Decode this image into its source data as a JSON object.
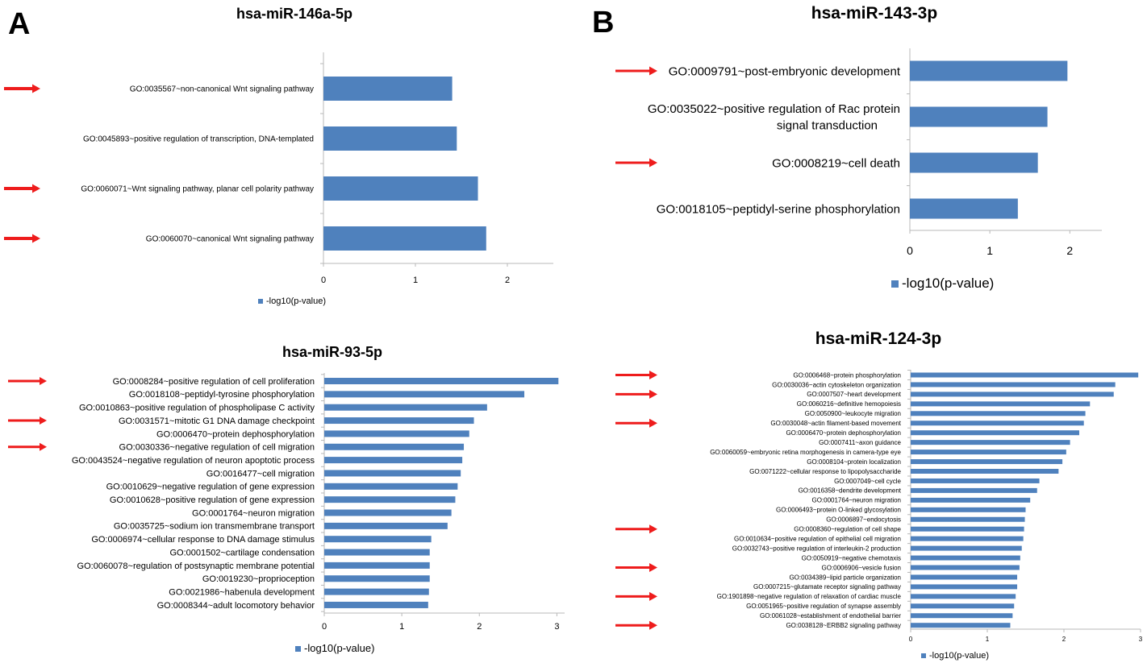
{
  "panel_labels": [
    "A",
    "B"
  ],
  "colors": {
    "bar": "#4f81bd",
    "arrow": "#ee1c1c",
    "axis": "#b8b8b8"
  },
  "chart_data": [
    {
      "type": "bar",
      "orientation": "horizontal",
      "title": "hsa-miR-146a-5p",
      "legend": "-log10(p-value)",
      "xlim": [
        0,
        2.5
      ],
      "xticks": [
        0,
        1,
        2
      ],
      "categories": [
        "GO:0035567~non-canonical Wnt signaling pathway",
        "GO:0045893~positive regulation of transcription, DNA-templated",
        "GO:0060071~Wnt signaling pathway, planar cell polarity pathway",
        "GO:0060070~canonical Wnt signaling pathway"
      ],
      "values": [
        1.4,
        1.45,
        1.68,
        1.77
      ],
      "highlighted": [
        0,
        2,
        3
      ]
    },
    {
      "type": "bar",
      "orientation": "horizontal",
      "title": "hsa-miR-143-3p",
      "legend": "-log10(p-value)",
      "xlim": [
        0,
        2.4
      ],
      "xticks": [
        0,
        1,
        2
      ],
      "categories": [
        [
          "GO:0009791~post-embryonic development"
        ],
        [
          "GO:0035022~positive regulation of Rac protein",
          "signal transduction"
        ],
        [
          "GO:0008219~cell death"
        ],
        [
          "GO:0018105~peptidyl-serine phosphorylation"
        ]
      ],
      "values": [
        1.97,
        1.72,
        1.6,
        1.35
      ],
      "highlighted": [
        0,
        2
      ]
    },
    {
      "type": "bar",
      "orientation": "horizontal",
      "title": "hsa-miR-93-5p",
      "legend": "-log10(p-value)",
      "xlim": [
        0,
        3.1
      ],
      "xticks": [
        0,
        1,
        2,
        3
      ],
      "categories": [
        "GO:0008284~positive regulation of cell proliferation",
        "GO:0018108~peptidyl-tyrosine phosphorylation",
        "GO:0010863~positive regulation of phospholipase C activity",
        "GO:0031571~mitotic G1 DNA damage checkpoint",
        "GO:0006470~protein dephosphorylation",
        "GO:0030336~negative regulation of cell migration",
        "GO:0043524~negative regulation of neuron apoptotic process",
        "GO:0016477~cell migration",
        "GO:0010629~negative regulation of gene expression",
        "GO:0010628~positive regulation of gene expression",
        "GO:0001764~neuron migration",
        "GO:0035725~sodium ion transmembrane transport",
        "GO:0006974~cellular response to DNA damage stimulus",
        "GO:0001502~cartilage condensation",
        "GO:0060078~regulation of postsynaptic membrane potential",
        "GO:0019230~proprioception",
        "GO:0021986~habenula development",
        "GO:0008344~adult locomotory behavior"
      ],
      "values": [
        3.02,
        2.58,
        2.1,
        1.93,
        1.87,
        1.8,
        1.78,
        1.76,
        1.72,
        1.69,
        1.64,
        1.59,
        1.38,
        1.36,
        1.36,
        1.36,
        1.35,
        1.34
      ],
      "highlighted": [
        0,
        3,
        5
      ]
    },
    {
      "type": "bar",
      "orientation": "horizontal",
      "title": "hsa-miR-124-3p",
      "legend": "-log10(p-value)",
      "xlim": [
        0,
        3
      ],
      "xticks": [
        0,
        1,
        2,
        3
      ],
      "categories": [
        "GO:0006468~protein phosphorylation",
        "GO:0030036~actin cytoskeleton organization",
        "GO:0007507~heart development",
        "GO:0060216~definitive hemopoiesis",
        "GO:0050900~leukocyte migration",
        "GO:0030048~actin filament-based movement",
        "GO:0006470~protein dephosphorylation",
        "GO:0007411~axon guidance",
        "GO:0060059~embryonic retina morphogenesis in camera-type eye",
        "GO:0008104~protein localization",
        "GO:0071222~cellular response to lipopolysaccharide",
        "GO:0007049~cell cycle",
        "GO:0016358~dendrite development",
        "GO:0001764~neuron migration",
        "GO:0006493~protein O-linked glycosylation",
        "GO:0006897~endocytosis",
        "GO:0008360~regulation of cell shape",
        "GO:0010634~positive regulation of epithelial cell migration",
        "GO:0032743~positive regulation of interleukin-2 production",
        "GO:0050919~negative chemotaxis",
        "GO:0006906~vesicle fusion",
        "GO:0034389~lipid particle organization",
        "GO:0007215~glutamate receptor signaling pathway",
        "GO:1901898~negative regulation of relaxation of cardiac muscle",
        "GO:0051965~positive regulation of synapse assembly",
        "GO:0061028~establishment of endothelial barrier",
        "GO:0038128~ERBB2 signaling pathway"
      ],
      "values": [
        2.97,
        2.67,
        2.65,
        2.34,
        2.28,
        2.26,
        2.2,
        2.08,
        2.03,
        1.98,
        1.93,
        1.68,
        1.65,
        1.56,
        1.5,
        1.49,
        1.48,
        1.47,
        1.45,
        1.43,
        1.42,
        1.39,
        1.39,
        1.37,
        1.35,
        1.33,
        1.3
      ],
      "highlighted": [
        0,
        2,
        5,
        16,
        20,
        23,
        26
      ]
    }
  ]
}
